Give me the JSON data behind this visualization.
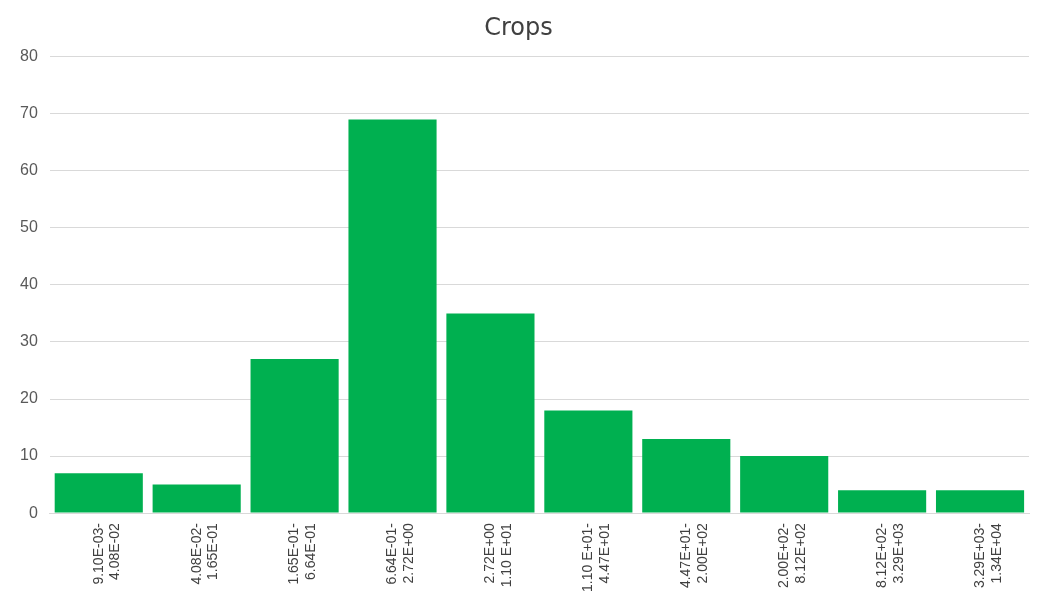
{
  "chart_data": {
    "type": "bar",
    "title": "Crops",
    "categories": [
      "9.10E-03-\n4.08E-02",
      "4.08E-02-\n1.65E-01",
      "1.65E-01-\n6.64E-01",
      "6.64E-01-\n2.72E+00",
      "2.72E+00\n1.10 E+01",
      "1.10 E+01-\n4.47E+01",
      "4.47E+01-\n2.00E+02",
      "2.00E+02-\n8.12E+02",
      "8.12E+02-\n3.29E+03",
      "3.29E+03-\n1.34E+04"
    ],
    "values": [
      7,
      5,
      27,
      69,
      35,
      18,
      13,
      10,
      4,
      4
    ],
    "color": "#00b050",
    "ylim": [
      0,
      80
    ],
    "yticks": [
      0,
      10,
      20,
      30,
      40,
      50,
      60,
      70,
      80
    ],
    "grid": "y",
    "legend": false
  }
}
